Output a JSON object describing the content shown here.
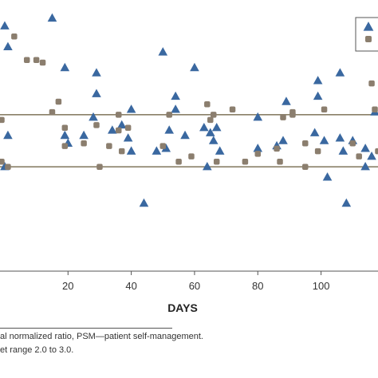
{
  "chart_data": {
    "type": "scatter",
    "xlabel": "DAYS",
    "ylabel": "",
    "xlim": [
      -1.5,
      118
    ],
    "ylim": [
      0,
      5.2
    ],
    "xticks": [
      20,
      40,
      60,
      80,
      100
    ],
    "grid": false,
    "legend_position": "top-right",
    "reference_lines": [
      2.0,
      3.0
    ],
    "colors": {
      "triangle_series": "#3a68a0",
      "circle_series": "#8b7e6e",
      "reference_lines": "#8a8068",
      "axis": "#555555"
    },
    "series": [
      {
        "marker": "triangle",
        "points": [
          [
            0,
            2.0
          ],
          [
            1,
            2.6
          ],
          [
            1,
            4.3
          ],
          [
            0,
            4.7
          ],
          [
            15,
            4.85
          ],
          [
            19,
            3.9
          ],
          [
            19,
            2.6
          ],
          [
            20,
            2.45
          ],
          [
            25,
            2.6
          ],
          [
            28,
            2.95
          ],
          [
            29,
            3.8
          ],
          [
            29,
            3.4
          ],
          [
            34,
            2.7
          ],
          [
            37,
            2.8
          ],
          [
            39,
            2.55
          ],
          [
            40,
            3.1
          ],
          [
            40,
            2.3
          ],
          [
            44,
            1.3
          ],
          [
            48,
            2.3
          ],
          [
            50,
            4.2
          ],
          [
            51,
            2.35
          ],
          [
            52,
            2.7
          ],
          [
            54,
            3.1
          ],
          [
            54,
            3.35
          ],
          [
            57,
            2.6
          ],
          [
            60,
            3.9
          ],
          [
            63,
            2.75
          ],
          [
            64,
            2.0
          ],
          [
            65,
            2.65
          ],
          [
            66,
            2.5
          ],
          [
            67,
            2.75
          ],
          [
            68,
            2.3
          ],
          [
            80,
            2.95
          ],
          [
            80,
            2.35
          ],
          [
            86,
            2.4
          ],
          [
            88,
            2.5
          ],
          [
            89,
            3.25
          ],
          [
            98,
            2.65
          ],
          [
            99,
            3.65
          ],
          [
            99,
            3.35
          ],
          [
            101,
            2.5
          ],
          [
            102,
            1.8
          ],
          [
            106,
            2.55
          ],
          [
            106,
            3.8
          ],
          [
            107,
            2.3
          ],
          [
            108,
            1.3
          ],
          [
            110,
            2.5
          ],
          [
            114,
            2.35
          ],
          [
            114,
            2.0
          ],
          [
            116,
            2.2
          ],
          [
            117,
            3.05
          ]
        ]
      },
      {
        "marker": "circle",
        "points": [
          [
            -1,
            2.9
          ],
          [
            -1,
            2.1
          ],
          [
            1,
            2.0
          ],
          [
            3,
            4.5
          ],
          [
            7,
            4.05
          ],
          [
            10,
            4.05
          ],
          [
            12,
            4.0
          ],
          [
            15,
            3.05
          ],
          [
            17,
            3.25
          ],
          [
            19,
            2.4
          ],
          [
            19,
            2.75
          ],
          [
            25,
            2.45
          ],
          [
            29,
            2.8
          ],
          [
            30,
            2.0
          ],
          [
            33,
            2.4
          ],
          [
            36,
            3.0
          ],
          [
            36,
            2.7
          ],
          [
            37,
            2.3
          ],
          [
            39,
            2.75
          ],
          [
            50,
            2.4
          ],
          [
            52,
            3.0
          ],
          [
            55,
            2.1
          ],
          [
            59,
            2.2
          ],
          [
            64,
            3.2
          ],
          [
            65,
            2.9
          ],
          [
            66,
            3.0
          ],
          [
            67,
            2.1
          ],
          [
            72,
            3.1
          ],
          [
            76,
            2.1
          ],
          [
            80,
            2.25
          ],
          [
            86,
            2.35
          ],
          [
            87,
            2.1
          ],
          [
            88,
            2.95
          ],
          [
            91,
            3.0
          ],
          [
            91,
            3.05
          ],
          [
            95,
            2.45
          ],
          [
            95,
            2.0
          ],
          [
            99,
            2.3
          ],
          [
            101,
            3.1
          ],
          [
            110,
            2.45
          ],
          [
            112,
            2.2
          ],
          [
            116,
            3.6
          ],
          [
            117,
            3.1
          ],
          [
            118,
            2.3
          ]
        ]
      }
    ]
  },
  "footnote": {
    "line1": "al normalized ratio, PSM—patient self-management.",
    "line2": "et range 2.0 to 3.0."
  }
}
